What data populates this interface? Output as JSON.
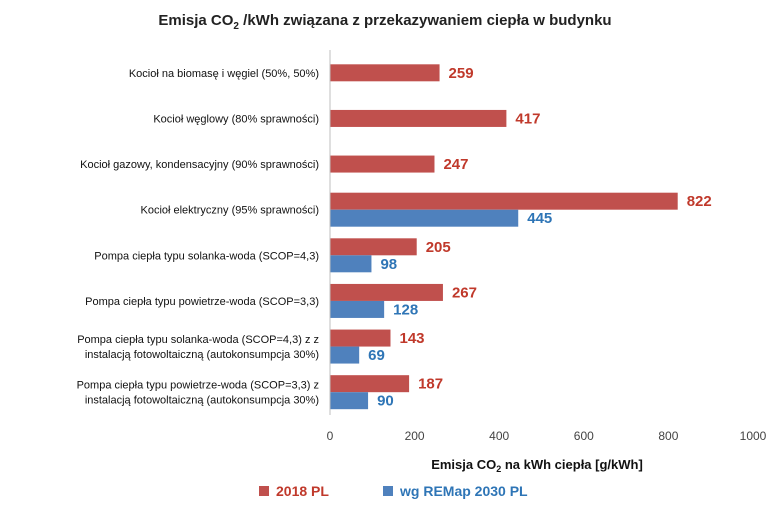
{
  "chart_data": {
    "type": "bar",
    "orientation": "horizontal",
    "title": {
      "before": "Emisja CO",
      "sub": "2",
      "after": " /kWh związana z przekazywaniem ciepła w budynku"
    },
    "xlabel": {
      "before": "Emisja CO",
      "sub": "2",
      "after": " na kWh ciepła [g/kWh]"
    },
    "xlim": [
      0,
      1000
    ],
    "xticks": [
      "0",
      "200",
      "400",
      "600",
      "800",
      "1000"
    ],
    "grid": false,
    "legend_position": "bottom",
    "categories": [
      [
        "Kocioł na biomasę i węgiel (50%, 50%)"
      ],
      [
        "Kocioł węglowy  (80% sprawności)"
      ],
      [
        "Kocioł gazowy, kondensacyjny (90% sprawności)"
      ],
      [
        "Kocioł elektryczny (95% sprawności)"
      ],
      [
        "Pompa ciepła typu solanka-woda (SCOP=4,3)"
      ],
      [
        "Pompa ciepła typu powietrze-woda (SCOP=3,3)"
      ],
      [
        "Pompa ciepła typu solanka-woda (SCOP=4,3) z z",
        "instalacją fotowoltaiczną (autokonsumpcja 30%)"
      ],
      [
        "Pompa ciepła typu powietrze-woda (SCOP=3,3) z",
        "instalacją fotowoltaiczną (autokonsumpcja 30%)"
      ]
    ],
    "series": [
      {
        "name": "2018 PL",
        "color": "#c0504d",
        "label_color": "#c0392b",
        "values": [
          259,
          417,
          247,
          822,
          205,
          267,
          143,
          187
        ]
      },
      {
        "name": "wg REMap 2030 PL",
        "color": "#4f81bd",
        "label_color": "#2e75b6",
        "values": [
          null,
          null,
          null,
          445,
          98,
          128,
          69,
          90
        ]
      }
    ]
  }
}
